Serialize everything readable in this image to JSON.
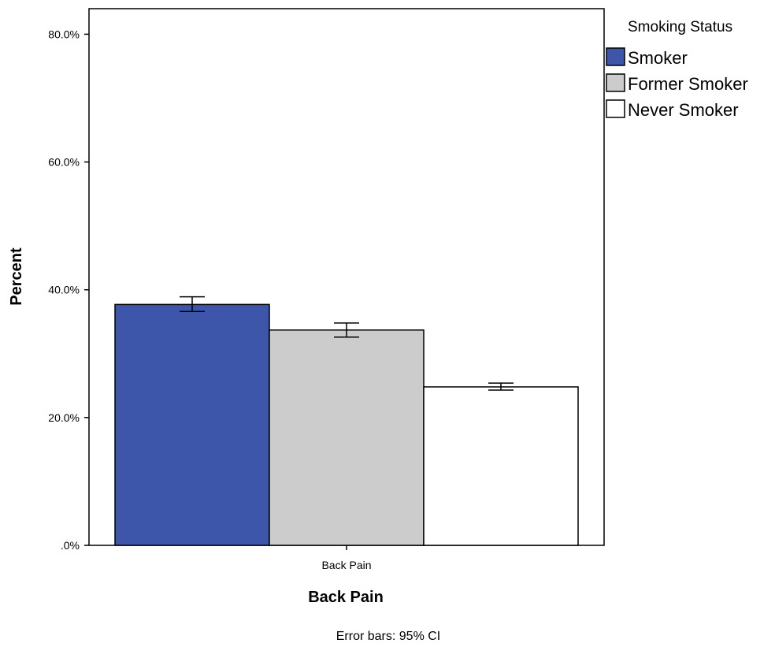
{
  "chart_data": {
    "type": "bar",
    "title": "",
    "xlabel": "Back Pain",
    "ylabel": "Percent",
    "categories": [
      "Back Pain"
    ],
    "ylim": [
      0,
      84
    ],
    "yticks": [
      0,
      20,
      40,
      60,
      80
    ],
    "ytick_labels": [
      ".0%",
      "20.0%",
      "40.0%",
      "60.0%",
      "80.0%"
    ],
    "grid": false,
    "legend": {
      "title": "Smoking Status",
      "position": "right"
    },
    "series": [
      {
        "name": "Smoker",
        "values": [
          37.7
        ],
        "ci_low": [
          36.6
        ],
        "ci_high": [
          38.9
        ],
        "color": "#3d56a9"
      },
      {
        "name": "Former Smoker",
        "values": [
          33.7
        ],
        "ci_low": [
          32.6
        ],
        "ci_high": [
          34.8
        ],
        "color": "#cccccc"
      },
      {
        "name": "Never Smoker",
        "values": [
          24.8
        ],
        "ci_low": [
          24.3
        ],
        "ci_high": [
          25.4
        ],
        "color": "#ffffff"
      }
    ],
    "footnote": "Error bars: 95% CI"
  }
}
